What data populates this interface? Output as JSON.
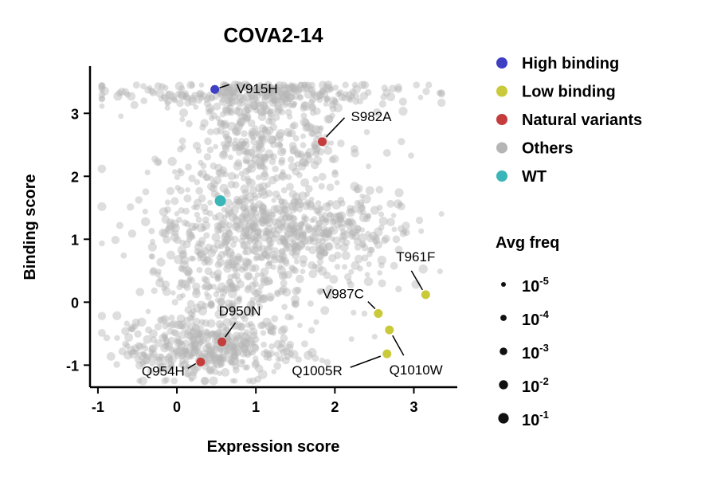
{
  "chart_data": {
    "type": "scatter",
    "title": "COVA2-14",
    "xlabel": "Expression score",
    "ylabel": "Binding score",
    "xlim": [
      -1.1,
      3.55
    ],
    "ylim": [
      -1.35,
      3.75
    ],
    "xticks": [
      -1,
      0,
      1,
      2,
      3
    ],
    "yticks": [
      -1,
      0,
      1,
      2,
      3
    ],
    "grid": false,
    "legend_placement": "right",
    "colors": {
      "High binding": "#3f3fc4",
      "Low binding": "#c9c93a",
      "Natural variants": "#c43c3c",
      "Others": "#b5b5b5",
      "WT": "#3ab5b8"
    },
    "legend": {
      "categories": [
        "High binding",
        "Low binding",
        "Natural variants",
        "Others",
        "WT"
      ],
      "size_title": "Avg freq",
      "size_levels": [
        {
          "base": "10",
          "exp": "-5"
        },
        {
          "base": "10",
          "exp": "-4"
        },
        {
          "base": "10",
          "exp": "-3"
        },
        {
          "base": "10",
          "exp": "-2"
        },
        {
          "base": "10",
          "exp": "-1"
        }
      ]
    },
    "highlighted_points": [
      {
        "label": "V915H",
        "category": "High binding",
        "x": 0.48,
        "y": 3.38
      },
      {
        "label": "S982A",
        "category": "Natural variants",
        "x": 1.84,
        "y": 2.55
      },
      {
        "label": "T961F",
        "category": "Low binding",
        "x": 3.15,
        "y": 0.12
      },
      {
        "label": "V987C",
        "category": "Low binding",
        "x": 2.55,
        "y": -0.18
      },
      {
        "label": "D950N",
        "category": "Natural variants",
        "x": 0.57,
        "y": -0.63
      },
      {
        "label": "Q954H",
        "category": "Natural variants",
        "x": 0.3,
        "y": -0.95
      },
      {
        "label": "Q1005R",
        "category": "Low binding",
        "x": 2.66,
        "y": -0.82
      },
      {
        "label": "Q1010W",
        "category": "Low binding",
        "x": 2.69,
        "y": -0.44
      },
      {
        "label": "WT",
        "category": "WT",
        "x": 0.55,
        "y": 1.61
      }
    ],
    "others_clusters": [
      {
        "x_center": 0.95,
        "x_sd": 0.95,
        "y_center": 3.3,
        "y_sd": 0.12,
        "count": 280
      },
      {
        "x_center": 1.0,
        "x_sd": 0.6,
        "y_center": 2.5,
        "y_sd": 0.45,
        "count": 330
      },
      {
        "x_center": 1.2,
        "x_sd": 0.75,
        "y_center": 1.2,
        "y_sd": 0.35,
        "count": 450
      },
      {
        "x_center": 0.7,
        "x_sd": 0.55,
        "y_center": 0.3,
        "y_sd": 0.45,
        "count": 260
      },
      {
        "x_center": 0.4,
        "x_sd": 0.55,
        "y_center": -0.75,
        "y_sd": 0.25,
        "count": 380
      },
      {
        "x_center": 2.3,
        "x_sd": 0.45,
        "y_center": 0.9,
        "y_sd": 0.5,
        "count": 90
      }
    ]
  }
}
